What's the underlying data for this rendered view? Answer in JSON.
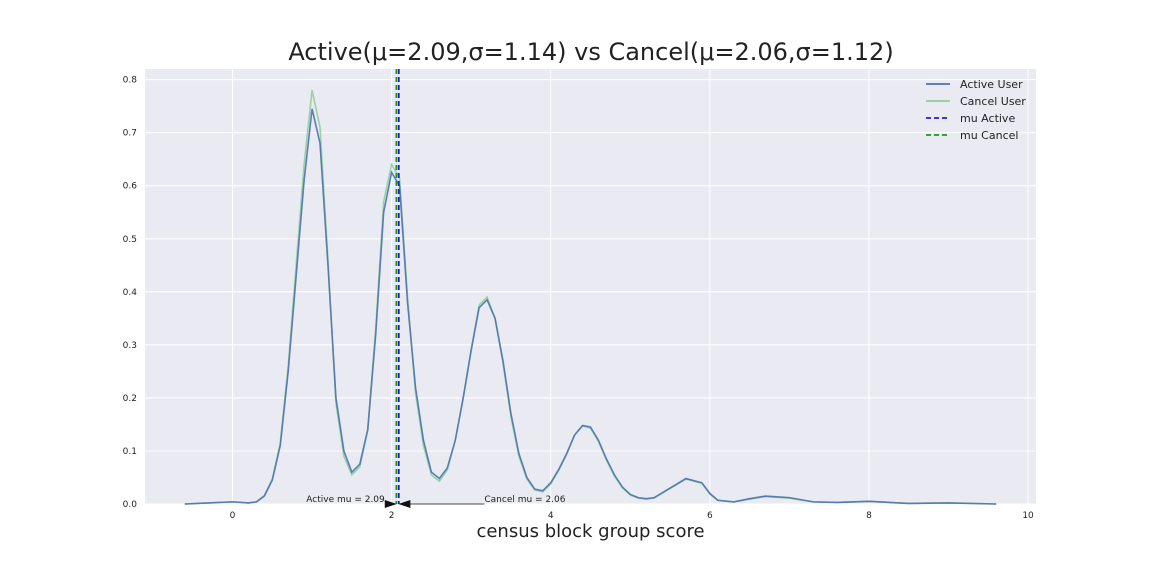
{
  "chart_data": {
    "type": "line",
    "title": "Active(μ=2.09,σ=1.14) vs Cancel(μ=2.06,σ=1.12)",
    "xlabel": "census block group score",
    "ylabel": "",
    "xlim": [
      -1.1,
      10.1
    ],
    "ylim": [
      0,
      0.82
    ],
    "grid": true,
    "legend_position": "top-right",
    "xticks": [
      0,
      2,
      4,
      6,
      8,
      10
    ],
    "yticks": [
      0.0,
      0.1,
      0.2,
      0.3,
      0.4,
      0.5,
      0.6,
      0.7,
      0.8
    ],
    "series": [
      {
        "name": "Active User",
        "color": "#4c72b0",
        "x": [
          -0.6,
          -0.3,
          0.0,
          0.2,
          0.3,
          0.4,
          0.5,
          0.6,
          0.7,
          0.8,
          0.9,
          1.0,
          1.1,
          1.2,
          1.3,
          1.4,
          1.5,
          1.6,
          1.7,
          1.8,
          1.9,
          2.0,
          2.1,
          2.2,
          2.3,
          2.4,
          2.5,
          2.6,
          2.7,
          2.8,
          2.9,
          3.0,
          3.1,
          3.2,
          3.3,
          3.4,
          3.5,
          3.6,
          3.7,
          3.8,
          3.9,
          4.0,
          4.1,
          4.2,
          4.3,
          4.4,
          4.5,
          4.6,
          4.7,
          4.8,
          4.9,
          5.0,
          5.1,
          5.2,
          5.3,
          5.5,
          5.7,
          5.9,
          6.0,
          6.1,
          6.3,
          6.5,
          6.7,
          7.0,
          7.3,
          7.6,
          8.0,
          8.5,
          9.0,
          9.6
        ],
        "values": [
          0.0,
          0.002,
          0.004,
          0.002,
          0.004,
          0.015,
          0.045,
          0.11,
          0.25,
          0.43,
          0.61,
          0.745,
          0.68,
          0.45,
          0.2,
          0.1,
          0.06,
          0.075,
          0.14,
          0.32,
          0.55,
          0.625,
          0.6,
          0.38,
          0.22,
          0.12,
          0.06,
          0.048,
          0.068,
          0.12,
          0.2,
          0.29,
          0.37,
          0.385,
          0.35,
          0.27,
          0.17,
          0.095,
          0.05,
          0.028,
          0.025,
          0.04,
          0.065,
          0.095,
          0.13,
          0.148,
          0.145,
          0.12,
          0.085,
          0.055,
          0.032,
          0.018,
          0.012,
          0.01,
          0.012,
          0.03,
          0.048,
          0.04,
          0.02,
          0.007,
          0.004,
          0.01,
          0.015,
          0.012,
          0.004,
          0.003,
          0.005,
          0.001,
          0.002,
          0.0
        ]
      },
      {
        "name": "Cancel User",
        "color": "#8fcf9a",
        "x": [
          -0.6,
          -0.3,
          0.0,
          0.2,
          0.3,
          0.4,
          0.5,
          0.6,
          0.7,
          0.8,
          0.9,
          1.0,
          1.1,
          1.2,
          1.3,
          1.4,
          1.5,
          1.6,
          1.7,
          1.8,
          1.9,
          2.0,
          2.1,
          2.2,
          2.3,
          2.4,
          2.5,
          2.6,
          2.7,
          2.8,
          2.9,
          3.0,
          3.1,
          3.2,
          3.3,
          3.4,
          3.5,
          3.6,
          3.7,
          3.8,
          3.9,
          4.0,
          4.1,
          4.2,
          4.3,
          4.4,
          4.5,
          4.6,
          4.7,
          4.8,
          4.9,
          5.0,
          5.1,
          5.2,
          5.3,
          5.5,
          5.7,
          5.9,
          6.0,
          6.1,
          6.3,
          6.5,
          6.7,
          7.0,
          7.3,
          7.6,
          8.0,
          8.5,
          9.0,
          9.6
        ],
        "values": [
          0.0,
          0.002,
          0.004,
          0.002,
          0.004,
          0.016,
          0.047,
          0.115,
          0.26,
          0.45,
          0.64,
          0.78,
          0.71,
          0.46,
          0.19,
          0.09,
          0.055,
          0.07,
          0.14,
          0.33,
          0.57,
          0.64,
          0.615,
          0.39,
          0.21,
          0.11,
          0.055,
          0.043,
          0.064,
          0.12,
          0.2,
          0.29,
          0.375,
          0.39,
          0.35,
          0.265,
          0.165,
          0.09,
          0.047,
          0.026,
          0.023,
          0.038,
          0.063,
          0.093,
          0.13,
          0.147,
          0.143,
          0.118,
          0.083,
          0.053,
          0.031,
          0.017,
          0.011,
          0.009,
          0.011,
          0.029,
          0.047,
          0.039,
          0.019,
          0.007,
          0.004,
          0.009,
          0.014,
          0.011,
          0.004,
          0.003,
          0.005,
          0.001,
          0.002,
          0.0
        ]
      }
    ],
    "vlines": [
      {
        "name": "mu Active",
        "x": 2.09,
        "color": "#1f1fd6",
        "style": "dashed"
      },
      {
        "name": "mu Cancel",
        "x": 2.06,
        "color": "#1a9a1a",
        "style": "dashed"
      }
    ],
    "annotations": [
      {
        "text": "Active mu = 2.09",
        "x": 2.09,
        "y": 0.0
      },
      {
        "text": "Cancel mu = 2.06",
        "x": 2.06,
        "y": 0.0
      }
    ]
  }
}
